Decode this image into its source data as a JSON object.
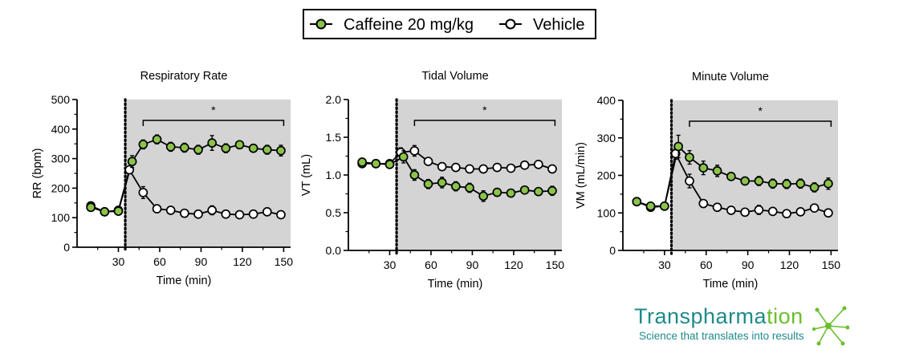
{
  "legend": [
    {
      "label": "Caffeine 20 mg/kg",
      "color": "#8bc34a",
      "marker": "filled-circle"
    },
    {
      "label": "Vehicle",
      "color": "#ffffff",
      "marker": "open-circle"
    }
  ],
  "colors": {
    "shade": "#d4d4d4",
    "caffeine": "#8bc34a",
    "line": "#000000",
    "logo_teal": "#1f8a8a",
    "logo_green": "#6bbf2b"
  },
  "logo": {
    "name_part1": "Transpharma",
    "name_part2": "tion",
    "tagline": "Science that translates into results"
  },
  "chart_data": [
    {
      "type": "line",
      "title": "Respiratory Rate",
      "xlabel": "Time (min)",
      "ylabel": "RR (bpm)",
      "xlim": [
        0,
        155
      ],
      "ylim": [
        0,
        500
      ],
      "x_ticks": [
        30,
        60,
        90,
        120,
        150
      ],
      "y_ticks": [
        0,
        100,
        200,
        300,
        400,
        500
      ],
      "dose_time": 35,
      "shaded_from": 35,
      "bracket": {
        "from": 48,
        "to": 150,
        "label": "*"
      },
      "series": [
        {
          "name": "Caffeine 20 mg/kg",
          "x": [
            10,
            20,
            30,
            40,
            48,
            58,
            68,
            78,
            88,
            98,
            108,
            118,
            128,
            138,
            148
          ],
          "y": [
            135,
            120,
            122,
            290,
            348,
            365,
            340,
            337,
            330,
            353,
            335,
            347,
            335,
            330,
            327
          ],
          "err": [
            12,
            8,
            8,
            20,
            15,
            15,
            15,
            15,
            15,
            25,
            15,
            12,
            12,
            15,
            18
          ]
        },
        {
          "name": "Vehicle",
          "x": [
            10,
            20,
            30,
            38,
            48,
            58,
            68,
            78,
            88,
            98,
            108,
            118,
            128,
            138,
            148
          ],
          "y": [
            140,
            120,
            125,
            262,
            185,
            130,
            125,
            115,
            112,
            125,
            112,
            110,
            112,
            120,
            110
          ],
          "err": [
            12,
            6,
            8,
            12,
            20,
            8,
            6,
            6,
            6,
            15,
            8,
            6,
            6,
            8,
            6
          ]
        }
      ]
    },
    {
      "type": "line",
      "title": "Tidal Volume",
      "xlabel": "Time (min)",
      "ylabel": "VT (mL)",
      "xlim": [
        0,
        155
      ],
      "ylim": [
        0,
        2.0
      ],
      "x_ticks": [
        30,
        60,
        90,
        120,
        150
      ],
      "y_ticks": [
        0.0,
        0.5,
        1.0,
        1.5,
        2.0
      ],
      "dose_time": 35,
      "shaded_from": 35,
      "bracket": {
        "from": 48,
        "to": 150,
        "label": "*"
      },
      "series": [
        {
          "name": "Caffeine 20 mg/kg",
          "x": [
            10,
            20,
            30,
            40,
            48,
            58,
            68,
            78,
            88,
            98,
            108,
            118,
            128,
            138,
            148
          ],
          "y": [
            1.17,
            1.15,
            1.14,
            1.24,
            1.0,
            0.88,
            0.9,
            0.85,
            0.83,
            0.72,
            0.77,
            0.76,
            0.8,
            0.78,
            0.79
          ],
          "err": [
            0.05,
            0.04,
            0.04,
            0.08,
            0.07,
            0.06,
            0.07,
            0.06,
            0.06,
            0.07,
            0.05,
            0.04,
            0.04,
            0.04,
            0.06
          ]
        },
        {
          "name": "Vehicle",
          "x": [
            10,
            20,
            30,
            38,
            48,
            58,
            68,
            78,
            88,
            98,
            108,
            118,
            128,
            138,
            148
          ],
          "y": [
            1.15,
            1.15,
            1.15,
            1.3,
            1.32,
            1.18,
            1.11,
            1.1,
            1.08,
            1.08,
            1.1,
            1.09,
            1.13,
            1.14,
            1.08
          ],
          "err": [
            0.04,
            0.03,
            0.03,
            0.06,
            0.07,
            0.04,
            0.04,
            0.05,
            0.05,
            0.05,
            0.04,
            0.04,
            0.04,
            0.04,
            0.03
          ]
        }
      ]
    },
    {
      "type": "line",
      "title": "Minute Volume",
      "xlabel": "Time (min)",
      "ylabel": "VM (mL/min)",
      "xlim": [
        0,
        155
      ],
      "ylim": [
        0,
        400
      ],
      "x_ticks": [
        30,
        60,
        90,
        120,
        150
      ],
      "y_ticks": [
        0,
        100,
        200,
        300,
        400
      ],
      "dose_time": 35,
      "shaded_from": 35,
      "bracket": {
        "from": 48,
        "to": 150,
        "label": "*"
      },
      "series": [
        {
          "name": "Caffeine 20 mg/kg",
          "x": [
            10,
            20,
            30,
            40,
            48,
            58,
            68,
            78,
            88,
            98,
            108,
            118,
            128,
            138,
            148
          ],
          "y": [
            130,
            118,
            118,
            277,
            248,
            220,
            212,
            197,
            185,
            185,
            178,
            177,
            178,
            168,
            178
          ],
          "err": [
            8,
            6,
            6,
            30,
            18,
            18,
            15,
            10,
            10,
            12,
            12,
            12,
            12,
            12,
            15
          ]
        },
        {
          "name": "Vehicle",
          "x": [
            10,
            20,
            30,
            38,
            48,
            58,
            68,
            78,
            88,
            98,
            108,
            118,
            128,
            138,
            148
          ],
          "y": [
            130,
            115,
            118,
            258,
            185,
            125,
            115,
            107,
            102,
            108,
            104,
            98,
            103,
            113,
            100
          ],
          "err": [
            8,
            6,
            6,
            15,
            18,
            8,
            6,
            6,
            6,
            12,
            6,
            6,
            6,
            10,
            6
          ]
        }
      ]
    }
  ]
}
